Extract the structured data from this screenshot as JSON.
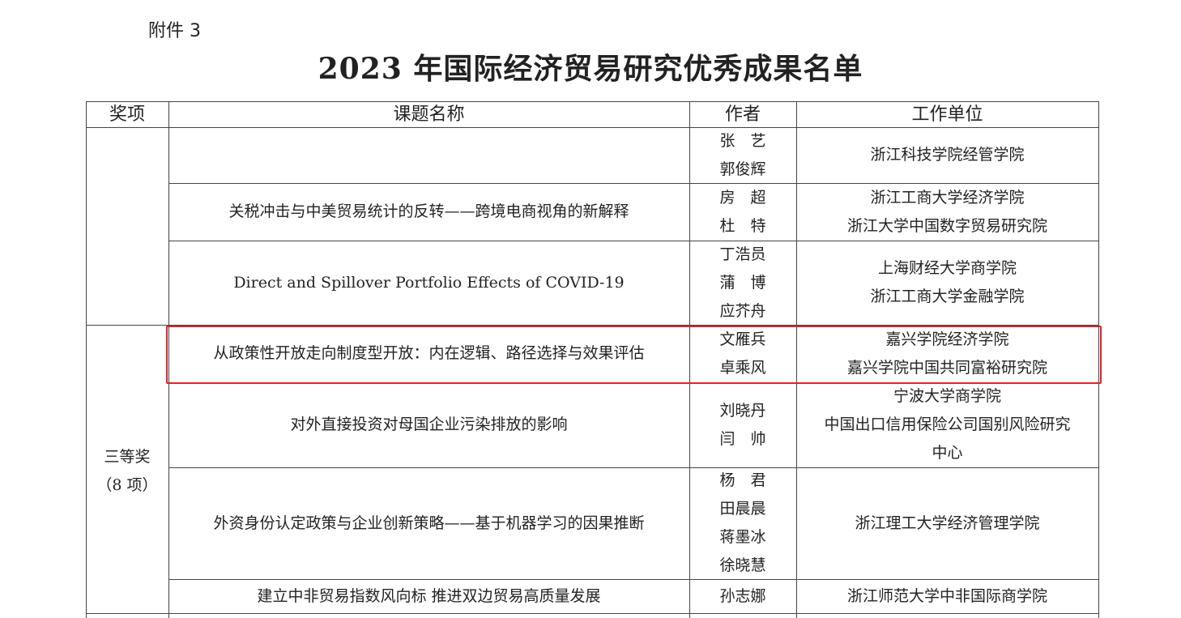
{
  "attachment": "附件 3",
  "title": "2023 年国际经济贸易研究优秀成果名单",
  "headers": {
    "award": "奖项",
    "topic": "课题名称",
    "authors": "作者",
    "unit": "工作单位"
  },
  "award_groups": [
    {
      "label": ""
    },
    {
      "label": "三等奖",
      "count": "（8 项）"
    }
  ],
  "rows": [
    {
      "topic": "",
      "authors": [
        "张　艺",
        "郭俊辉"
      ],
      "units": [
        "浙江科技学院经管学院"
      ]
    },
    {
      "topic": "关税冲击与中美贸易统计的反转——跨境电商视角的新解释",
      "authors": [
        "房　超",
        "杜　特"
      ],
      "units": [
        "浙江工商大学经济学院",
        "浙江大学中国数字贸易研究院"
      ]
    },
    {
      "topic": "Direct and Spillover Portfolio Effects of COVID-19",
      "authors": [
        "丁浩员",
        "蒲　博",
        "应芥舟"
      ],
      "units": [
        "上海财经大学商学院",
        "浙江工商大学金融学院"
      ]
    },
    {
      "topic": "从政策性开放走向制度型开放：内在逻辑、路径选择与效果评估",
      "authors": [
        "文雁兵",
        "卓乘风"
      ],
      "units": [
        "嘉兴学院经济学院",
        "嘉兴学院中国共同富裕研究院"
      ],
      "highlighted": true
    },
    {
      "topic": "对外直接投资对母国企业污染排放的影响",
      "authors": [
        "刘晓丹",
        "闫　帅"
      ],
      "units": [
        "宁波大学商学院",
        "中国出口信用保险公司国别风险研究",
        "中心"
      ]
    },
    {
      "topic": "外资身份认定政策与企业创新策略——基于机器学习的因果推断",
      "authors": [
        "杨　君",
        "田晨晨",
        "蒋墨冰",
        "徐晓慧"
      ],
      "units": [
        "浙江理工大学经济管理学院"
      ]
    },
    {
      "topic": "建立中非贸易指数风向标  推进双边贸易高质量发展",
      "authors": [
        "孙志娜"
      ],
      "units": [
        "浙江师范大学中非国际商学院"
      ]
    }
  ],
  "highlight_color": "#d9262b"
}
